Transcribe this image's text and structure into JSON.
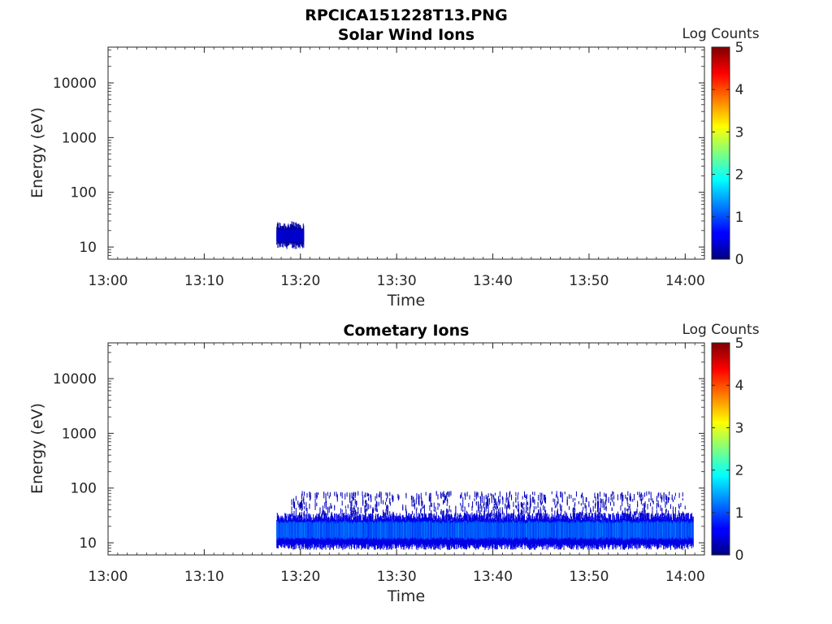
{
  "figure_title": "RPCICA151228T13.PNG",
  "chart_data": [
    {
      "type": "heatmap",
      "title": "Solar Wind Ions",
      "xlabel": "Time",
      "ylabel": "Energy (eV)",
      "y_scale": "log",
      "ylim": [
        6,
        45000
      ],
      "xlim": [
        "13:00",
        "14:02"
      ],
      "x_ticks": [
        "13:00",
        "13:10",
        "13:20",
        "13:30",
        "13:40",
        "13:50",
        "14:00"
      ],
      "y_ticks": [
        "10",
        "100",
        "1000",
        "10000"
      ],
      "colorbar": {
        "label": "Log Counts",
        "ticks": [
          "0",
          "1",
          "2",
          "3",
          "4",
          "5"
        ],
        "range": [
          0,
          5
        ]
      },
      "regions": [
        {
          "t_start": "13:17:30",
          "t_end": "13:20:20",
          "e_low": 10,
          "e_high": 25,
          "e_center": 16,
          "log_counts": 0.4
        }
      ]
    },
    {
      "type": "heatmap",
      "title": "Cometary Ions",
      "xlabel": "Time",
      "ylabel": "Energy (eV)",
      "y_scale": "log",
      "ylim": [
        6,
        45000
      ],
      "xlim": [
        "13:00",
        "14:02"
      ],
      "x_ticks": [
        "13:00",
        "13:10",
        "13:20",
        "13:30",
        "13:40",
        "13:50",
        "14:00"
      ],
      "y_ticks": [
        "10",
        "100",
        "1000",
        "10000"
      ],
      "colorbar": {
        "label": "Log Counts",
        "ticks": [
          "0",
          "1",
          "2",
          "3",
          "4",
          "5"
        ],
        "range": [
          0,
          5
        ]
      },
      "regions": [
        {
          "t_start": "13:17:30",
          "t_end": "14:00:50",
          "e_low": 8,
          "e_high": 30,
          "e_center": 17,
          "log_counts": 1.1
        },
        {
          "t_start": "13:19:00",
          "t_end": "14:00:00",
          "e_low": 30,
          "e_high": 80,
          "log_counts": 0.2,
          "note_sparse": true
        }
      ]
    }
  ]
}
